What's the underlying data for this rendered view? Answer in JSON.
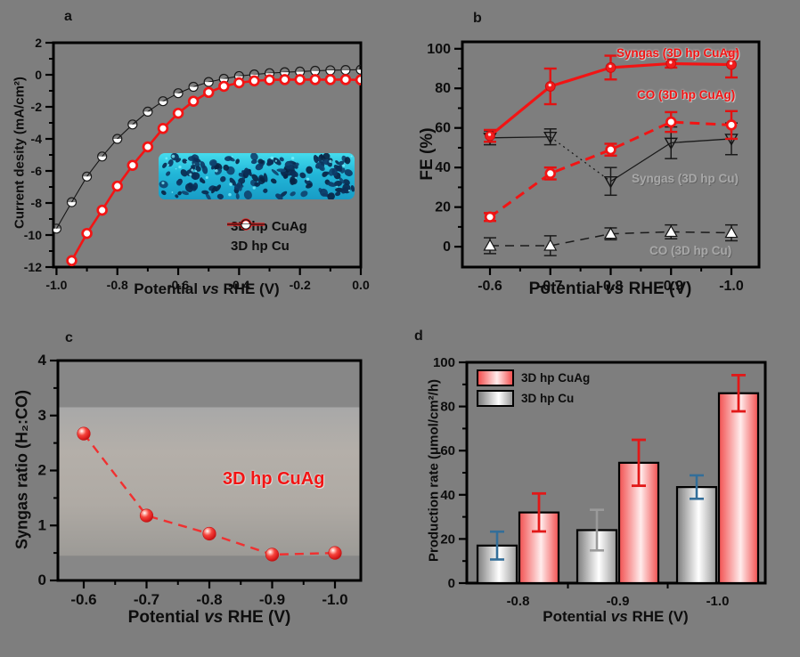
{
  "page": {
    "background": "#7e7e7e"
  },
  "colors": {
    "red": "#f21414",
    "black": "#161616",
    "grey_label": "#a8a8a8",
    "blue_error": "#336e99",
    "grey_error": "#9a9a9a",
    "bar_cuag_stops": [
      "#f25050",
      "#ffecec",
      "#f25050"
    ],
    "bar_cu_stops": [
      "#7d7d7d",
      "#ffffff",
      "#9a9a9a"
    ]
  },
  "chart_data": [
    {
      "id": "a",
      "type": "line",
      "letter": "a",
      "ylabel": "Current desity (mA/cm²)",
      "xlabel": {
        "pre": "Potential ",
        "vs": "vs",
        "post": " RHE (V)"
      },
      "xlim": [
        -1.01,
        0.0
      ],
      "ylim": [
        -12,
        2
      ],
      "xtick_values": [
        -1.0,
        -0.8,
        -0.6,
        -0.4,
        -0.2,
        0.0
      ],
      "xtick_labels": [
        "-1.0",
        "-0.8",
        "-0.6",
        "-0.4",
        "-0.2",
        "0.0"
      ],
      "ytick_values": [
        2,
        0,
        -2,
        -4,
        -6,
        -8,
        -10,
        -12
      ],
      "ytick_labels": [
        "2",
        "0",
        "-2",
        "-4",
        "-6",
        "-8",
        "-10",
        "-12"
      ],
      "series": [
        {
          "name": "3D hp Cu",
          "marker": "half-circle",
          "color": "#161616",
          "line_width": 1.1,
          "x": [
            -1.0,
            -0.95,
            -0.9,
            -0.85,
            -0.8,
            -0.75,
            -0.7,
            -0.65,
            -0.6,
            -0.55,
            -0.5,
            -0.45,
            -0.4,
            -0.35,
            -0.3,
            -0.25,
            -0.2,
            -0.15,
            -0.1,
            -0.05,
            0.0
          ],
          "y": [
            -9.6,
            -7.95,
            -6.35,
            -5.1,
            -4.0,
            -3.1,
            -2.3,
            -1.65,
            -1.15,
            -0.75,
            -0.45,
            -0.25,
            -0.08,
            0.02,
            0.1,
            0.16,
            0.2,
            0.25,
            0.28,
            0.3,
            0.32
          ]
        },
        {
          "name": "3D hp CuAg",
          "marker": "open-circle-red",
          "color": "#f21414",
          "line_width": 2.6,
          "x": [
            -0.95,
            -0.9,
            -0.85,
            -0.8,
            -0.75,
            -0.7,
            -0.65,
            -0.6,
            -0.55,
            -0.5,
            -0.45,
            -0.4,
            -0.35,
            -0.3,
            -0.25,
            -0.2,
            -0.15,
            -0.1,
            -0.05,
            0.0
          ],
          "y": [
            -11.6,
            -9.9,
            -8.45,
            -6.95,
            -5.65,
            -4.5,
            -3.35,
            -2.4,
            -1.65,
            -1.1,
            -0.72,
            -0.5,
            -0.38,
            -0.32,
            -0.3,
            -0.3,
            -0.3,
            -0.3,
            -0.3,
            -0.32
          ]
        }
      ],
      "legend": [
        {
          "label": "3D hp CuAg"
        },
        {
          "label": "3D hp Cu"
        }
      ],
      "inset": {
        "name": "sem-foam-strip"
      }
    },
    {
      "id": "b",
      "type": "line",
      "letter": "b",
      "ylabel": "FE (%)",
      "xlabel": {
        "pre": "Potential  ",
        "vs": "vs",
        "post": " RHE (V)"
      },
      "ylim": [
        -10.3,
        103.5
      ],
      "categories": [
        "-0.6",
        "-0.7",
        "-0.8",
        "-0.9",
        "-1.0"
      ],
      "ytick_values": [
        0,
        20,
        40,
        60,
        80,
        100
      ],
      "ytick_labels": [
        "0",
        "20",
        "40",
        "60",
        "80",
        "100"
      ],
      "series": [
        {
          "name": "Syngas (3D hp Cu)",
          "marker": "tri-down-open",
          "color": "#1a1a1a",
          "width": 1.3,
          "dash": "mixed",
          "values": [
            55,
            55.5,
            33,
            52.5,
            54.5
          ],
          "err": [
            3.5,
            4,
            7,
            8,
            8
          ]
        },
        {
          "name": "CO (3D hp Cu)",
          "marker": "tri-up-white",
          "color": "#1a1a1a",
          "width": 1.5,
          "dash": "10 7",
          "values": [
            0.5,
            0.5,
            6.5,
            7.5,
            7
          ],
          "err": [
            4,
            5,
            3,
            3.5,
            4
          ]
        },
        {
          "name": "CO (3D hp CuAg)",
          "marker": "open-circle-red",
          "color": "#f21414",
          "width": 3,
          "dash": "11 7",
          "values": [
            15,
            37,
            49,
            63,
            61.5
          ],
          "err": [
            2,
            3,
            3,
            5,
            7
          ]
        },
        {
          "name": "Syngas (3D hp CuAg)",
          "marker": "filled-circle-red",
          "color": "#f21414",
          "width": 3.2,
          "dash": null,
          "values": [
            56,
            81,
            90.5,
            92.5,
            92
          ],
          "err": [
            3,
            9,
            6,
            2,
            6.5
          ]
        }
      ],
      "annotations": [
        {
          "text": "Syngas (3D hp CuAg)",
          "style": "red"
        },
        {
          "text": "CO (3D hp CuAg)",
          "style": "red"
        },
        {
          "text": "Syngas (3D hp Cu)",
          "style": "grey"
        },
        {
          "text": "CO (3D hp Cu)",
          "style": "grey"
        }
      ]
    },
    {
      "id": "c",
      "type": "scatter",
      "letter": "c",
      "ylabel": "Syngas ratio (H₂:CO)",
      "xlabel": {
        "pre": "Potential ",
        "vs": "vs",
        "post": " RHE (V)"
      },
      "ylim": [
        0,
        4
      ],
      "categories": [
        "-0.6",
        "-0.7",
        "-0.8",
        "-0.9",
        "-1.0"
      ],
      "ytick_values": [
        0,
        1,
        2,
        3,
        4
      ],
      "ytick_labels": [
        "0",
        "1",
        "2",
        "3",
        "4"
      ],
      "band": {
        "from": 0.45,
        "to": 3.15
      },
      "series": [
        {
          "name": "3D hp CuAg",
          "marker": "sphere-red",
          "color": "#f03030",
          "width": 2.4,
          "dash": "10 7",
          "values": [
            2.67,
            1.18,
            0.85,
            0.47,
            0.5
          ]
        }
      ],
      "annotations": [
        {
          "text": "3D hp CuAg",
          "style": "red-big"
        }
      ]
    },
    {
      "id": "d",
      "type": "bar",
      "letter": "d",
      "ylabel": "Production rate (μmol/cm²/h)",
      "xlabel": {
        "pre": "Potential ",
        "vs": "vs",
        "post": " RHE (V)"
      },
      "ylim": [
        0,
        100
      ],
      "categories": [
        "-0.8",
        "-0.9",
        "-1.0"
      ],
      "ytick_values": [
        0,
        20,
        40,
        60,
        80,
        100
      ],
      "ytick_labels": [
        "0",
        "20",
        "40",
        "60",
        "80",
        "100"
      ],
      "series": [
        {
          "name": "3D hp Cu",
          "values": [
            17,
            24,
            43.5
          ],
          "err": [
            6.3,
            9.2,
            5.3
          ],
          "err_colors": [
            "#336e99",
            "#9a9a9a",
            "#336e99"
          ],
          "fill": "cu"
        },
        {
          "name": "3D hp CuAg",
          "values": [
            32,
            54.5,
            86
          ],
          "err": [
            8.6,
            10.4,
            8.2
          ],
          "err_colors": [
            "#e21818",
            "#e21818",
            "#e21818"
          ],
          "fill": "cuag"
        }
      ],
      "legend": [
        {
          "label": "3D hp CuAg"
        },
        {
          "label": "3D hp Cu"
        }
      ]
    }
  ]
}
